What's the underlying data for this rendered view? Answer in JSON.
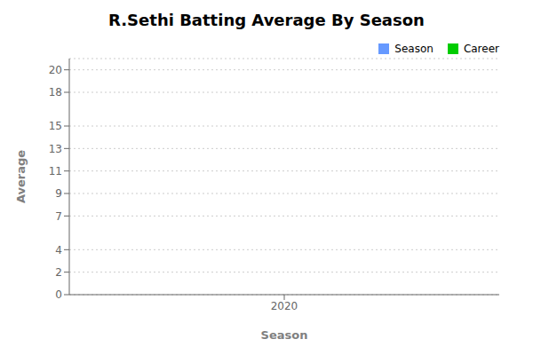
{
  "chart_data": {
    "type": "bar",
    "title": "R.Sethi Batting Average By Season",
    "xlabel": "Season",
    "ylabel": "Average",
    "x": [],
    "series": [
      {
        "name": "Season",
        "color": "#6699ff",
        "values": []
      },
      {
        "name": "Career",
        "color": "#00cc00",
        "values": []
      }
    ],
    "xlim": [
      2019.5,
      2020.5
    ],
    "xticks": [
      2020
    ],
    "ylim": [
      0,
      21
    ],
    "yticks": [
      0,
      2,
      4,
      7,
      9,
      11,
      13,
      15,
      18,
      20
    ],
    "grid": true,
    "legend": "upper right"
  }
}
